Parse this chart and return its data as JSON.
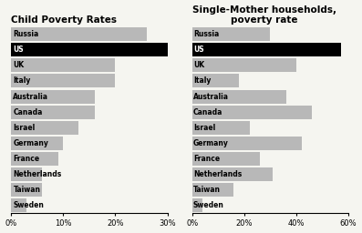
{
  "left_title": "Child Poverty Rates",
  "right_title": "Single-Mother households,\npoverty rate",
  "countries": [
    "Russia",
    "US",
    "UK",
    "Italy",
    "Australia",
    "Canada",
    "Israel",
    "Germany",
    "France",
    "Netherlands",
    "Taiwan",
    "Sweden"
  ],
  "child_poverty": [
    26,
    30,
    20,
    20,
    16,
    16,
    13,
    10,
    9,
    6,
    6,
    3
  ],
  "single_mother_poverty": [
    30,
    57,
    40,
    18,
    36,
    46,
    22,
    42,
    26,
    31,
    16,
    4
  ],
  "bar_color_default": "#b8b8b8",
  "bar_color_us": "#000000",
  "left_xlim": [
    0,
    30
  ],
  "right_xlim": [
    0,
    60
  ],
  "left_xticks": [
    0,
    10,
    20,
    30
  ],
  "right_xticks": [
    0,
    20,
    40,
    60
  ],
  "left_xticklabels": [
    "0%",
    "10%",
    "20%",
    "30%"
  ],
  "right_xticklabels": [
    "0%",
    "20%",
    "40%",
    "60%"
  ],
  "background_color": "#f5f5f0"
}
